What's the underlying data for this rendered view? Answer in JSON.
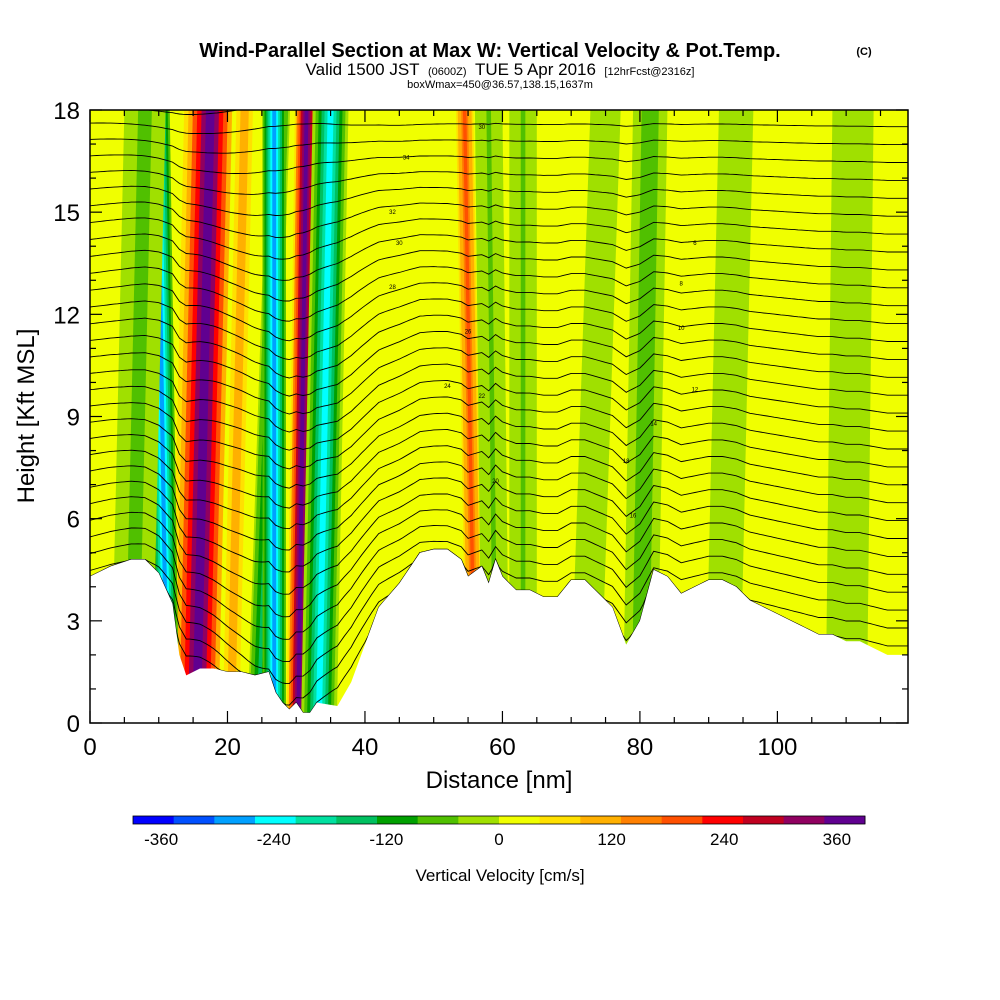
{
  "chart_data": {
    "type": "heatmap",
    "title": "Wind-Parallel Section at Max W: Vertical Velocity & Pot.Temp.",
    "title_mark": "(C)",
    "subtitle_main": "Valid 1500 JST",
    "subtitle_utc": "(0600Z)",
    "subtitle_date": "TUE 5 Apr 2016",
    "subtitle_fcst": "[12hrFcst@2316z]",
    "subtitle2": "boxWmax=450@36.57,138.15,1637m",
    "xlabel": "Distance [nm]",
    "ylabel": "Height [Kft MSL]",
    "xlim": [
      0,
      119
    ],
    "ylim": [
      0,
      18
    ],
    "x_ticks": [
      "0",
      "20",
      "40",
      "60",
      "80",
      "100"
    ],
    "x_tick_values": [
      0,
      20,
      40,
      60,
      80,
      100
    ],
    "y_ticks": [
      "0",
      "3",
      "6",
      "9",
      "12",
      "15",
      "18"
    ],
    "y_tick_values": [
      0,
      3,
      6,
      9,
      12,
      15,
      18
    ],
    "colorbar_label": "Vertical Velocity [cm/s]",
    "colorbar_ticks": [
      "-360",
      "-240",
      "-120",
      "0",
      "120",
      "240",
      "360"
    ],
    "colorbar_tick_values": [
      -360,
      -240,
      -120,
      0,
      120,
      240,
      360
    ],
    "colorbar_range": [
      -390,
      390
    ],
    "colorbar_colors": [
      "#0000ff",
      "#0050ff",
      "#00a0ff",
      "#00ffff",
      "#00e0a0",
      "#00c060",
      "#00a000",
      "#50c000",
      "#a0e000",
      "#f0ff00",
      "#ffe000",
      "#ffb000",
      "#ff8000",
      "#ff5000",
      "#ff0000",
      "#c00020",
      "#900060",
      "#600090"
    ],
    "terrain_profile": {
      "x": [
        0,
        3,
        6,
        8,
        10,
        12,
        13,
        14,
        16,
        18,
        20,
        22,
        24,
        26,
        27,
        28,
        29,
        30,
        31,
        32,
        33,
        36,
        38,
        40,
        42,
        45,
        48,
        50,
        52,
        54,
        55,
        57,
        58,
        59,
        60,
        62,
        64,
        66,
        68,
        70,
        72,
        74,
        76,
        78,
        80,
        82,
        84,
        86,
        88,
        90,
        92,
        94,
        96,
        98,
        100,
        102,
        104,
        106,
        108,
        110,
        112,
        114,
        116,
        119
      ],
      "height": [
        4.3,
        4.6,
        4.8,
        4.8,
        4.4,
        3.5,
        2.0,
        1.4,
        1.6,
        1.6,
        1.5,
        1.5,
        1.4,
        1.5,
        0.9,
        0.6,
        0.4,
        0.6,
        0.3,
        0.3,
        0.6,
        0.5,
        1.2,
        2.3,
        3.4,
        4.1,
        5.0,
        5.1,
        5.1,
        4.8,
        4.3,
        4.6,
        4.1,
        4.8,
        4.3,
        3.9,
        3.9,
        3.7,
        3.7,
        4.2,
        4.2,
        3.8,
        3.4,
        2.3,
        3.0,
        4.5,
        4.3,
        3.8,
        4.0,
        4.2,
        4.2,
        4.0,
        3.6,
        3.4,
        3.2,
        3.0,
        2.8,
        2.6,
        2.6,
        2.4,
        2.4,
        2.2,
        2.0,
        2.0
      ]
    },
    "vertical_velocity_bands": [
      {
        "center_base": 15.5,
        "center_top": 17.5,
        "width": 3.8,
        "value": 380
      },
      {
        "center_base": 11.2,
        "center_top": 9.8,
        "width": 1.8,
        "value": -270
      },
      {
        "center_base": 24.5,
        "center_top": 27.5,
        "width": 1.6,
        "value": -150
      },
      {
        "center_base": 26.8,
        "center_top": 26.8,
        "width": 1.7,
        "value": -280
      },
      {
        "center_base": 30.3,
        "center_top": 31.5,
        "width": 1.7,
        "value": 390
      },
      {
        "center_base": 33.3,
        "center_top": 35.0,
        "width": 2.6,
        "value": -220
      },
      {
        "center_base": 20.5,
        "center_top": 22.5,
        "width": 1.8,
        "value": 120
      },
      {
        "center_base": 6.0,
        "center_top": 8.0,
        "width": 3.0,
        "value": -60
      },
      {
        "center_base": 56.0,
        "center_top": 54.5,
        "width": 1.5,
        "value": 180
      },
      {
        "center_base": 59.0,
        "center_top": 58.0,
        "width": 2.0,
        "value": -50
      },
      {
        "center_base": 63.0,
        "center_top": 63.0,
        "width": 2.0,
        "value": -50
      },
      {
        "center_base": 72.0,
        "center_top": 75.0,
        "width": 2.2,
        "value": -40
      },
      {
        "center_base": 80.0,
        "center_top": 81.5,
        "width": 2.5,
        "value": -70
      },
      {
        "center_base": 92.0,
        "center_top": 94.0,
        "width": 2.5,
        "value": -30
      },
      {
        "center_base": 110.0,
        "center_top": 111.0,
        "width": 3.0,
        "value": -20
      }
    ],
    "potential_temperature_contour_labels": [
      "30",
      "34",
      "32",
      "30",
      "28",
      "26",
      "24",
      "22",
      "20",
      "18",
      "16",
      "14",
      "12",
      "10",
      "8",
      "6"
    ]
  }
}
